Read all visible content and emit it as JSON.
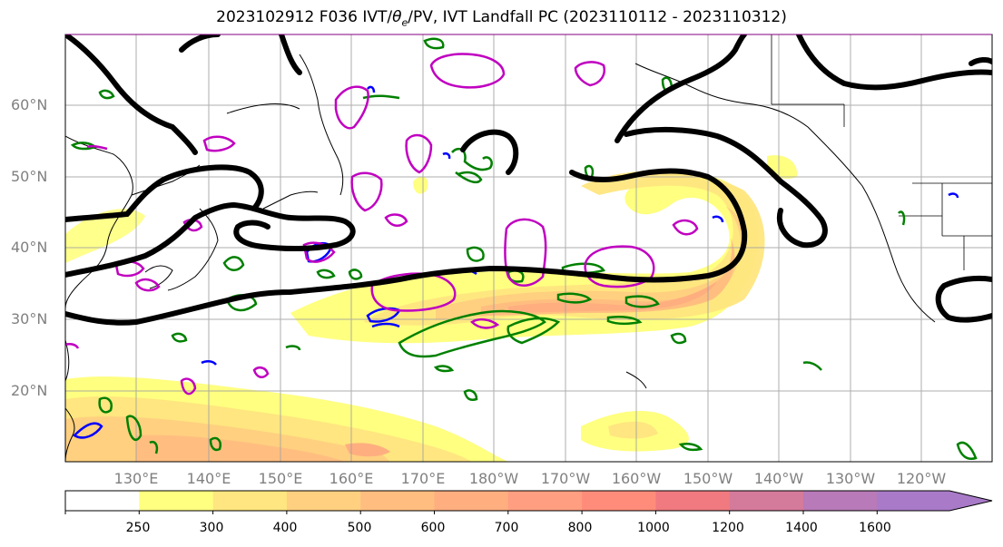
{
  "title": "2023102912 F036 IVT/θe/PV, IVT Landfall PC (2023110112 - 2023110312)",
  "latitude_labels": [
    "60°N",
    "50°N",
    "40°N",
    "30°N",
    "20°N"
  ],
  "longitude_labels": [
    "130°E",
    "140°E",
    "150°E",
    "160°E",
    "170°E",
    "180°W",
    "170°W",
    "160°W",
    "150°W",
    "140°W",
    "130°W",
    "120°W"
  ],
  "colorbar": {
    "tick_labels": [
      "250",
      "300",
      "400",
      "500",
      "600",
      "700",
      "800",
      "1000",
      "1200",
      "1400",
      "1600"
    ],
    "colors": [
      "#ffffff",
      "#ffff80",
      "#ffe680",
      "#ffd080",
      "#ffbe80",
      "#ffae80",
      "#ff9e80",
      "#ff8c7a",
      "#f07a80",
      "#d47a9a",
      "#b87ab8",
      "#a87ac8"
    ]
  },
  "contour_colors": {
    "theta_e": "#000000",
    "pv": "#c000c0",
    "green_contours": "#008000",
    "blue_contours": "#0000ff",
    "coastline": "#000000"
  }
}
